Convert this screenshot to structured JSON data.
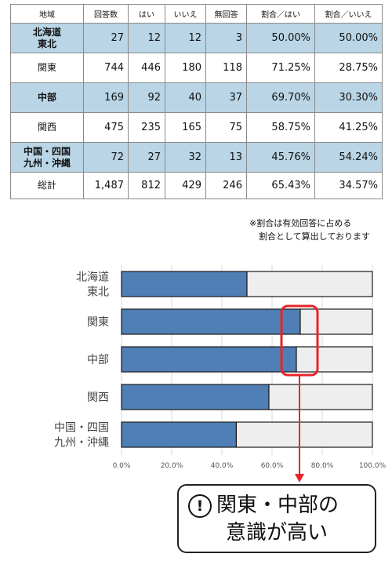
{
  "table": {
    "headers": [
      "地域",
      "回答数",
      "はい",
      "いいえ",
      "無回答",
      "割合／はい",
      "割合／いいえ"
    ],
    "rows": [
      {
        "region": [
          "北海道",
          "東北"
        ],
        "n": "27",
        "yes": "12",
        "no": "12",
        "na": "3",
        "yes_pct": "50.00%",
        "no_pct": "50.00%",
        "highlight": true
      },
      {
        "region": [
          "関東"
        ],
        "n": "744",
        "yes": "446",
        "no": "180",
        "na": "118",
        "yes_pct": "71.25%",
        "no_pct": "28.75%",
        "highlight": false
      },
      {
        "region": [
          "中部"
        ],
        "n": "169",
        "yes": "92",
        "no": "40",
        "na": "37",
        "yes_pct": "69.70%",
        "no_pct": "30.30%",
        "highlight": true
      },
      {
        "region": [
          "関西"
        ],
        "n": "475",
        "yes": "235",
        "no": "165",
        "na": "75",
        "yes_pct": "58.75%",
        "no_pct": "41.25%",
        "highlight": false
      },
      {
        "region": [
          "中国・四国",
          "九州・沖縄"
        ],
        "n": "72",
        "yes": "27",
        "no": "32",
        "na": "13",
        "yes_pct": "45.76%",
        "no_pct": "54.24%",
        "highlight": true
      }
    ],
    "total": {
      "region": [
        "総計"
      ],
      "n": "1,487",
      "yes": "812",
      "no": "429",
      "na": "246",
      "yes_pct": "65.43%",
      "no_pct": "34.57%"
    }
  },
  "note": {
    "line1": "※割合は有効回答に占める",
    "line2": "割合として算出しております"
  },
  "chart_data": {
    "type": "bar",
    "orientation": "horizontal",
    "stacked": true,
    "categories": [
      [
        "北海道",
        "東北"
      ],
      [
        "関東"
      ],
      [
        "中部"
      ],
      [
        "関西"
      ],
      [
        "中国・四国",
        "九州・沖縄"
      ]
    ],
    "series": [
      {
        "name": "",
        "values": [
          50.0,
          71.25,
          69.7,
          58.75,
          45.76
        ],
        "color": "#4f7fb4"
      },
      {
        "name": "",
        "values": [
          50.0,
          28.75,
          30.3,
          41.25,
          54.24
        ],
        "color": "#eeeeee"
      }
    ],
    "xlim": [
      0,
      100
    ],
    "xticks": [
      "0.0%",
      "20.0%",
      "40.0%",
      "60.0%",
      "80.0%",
      "100.0%"
    ],
    "grid": true,
    "highlight_color": "#e8242a",
    "callout": {
      "line1": "関東・中部の",
      "line2": "意識が高い",
      "icon": "exclamation-circle-icon"
    }
  }
}
